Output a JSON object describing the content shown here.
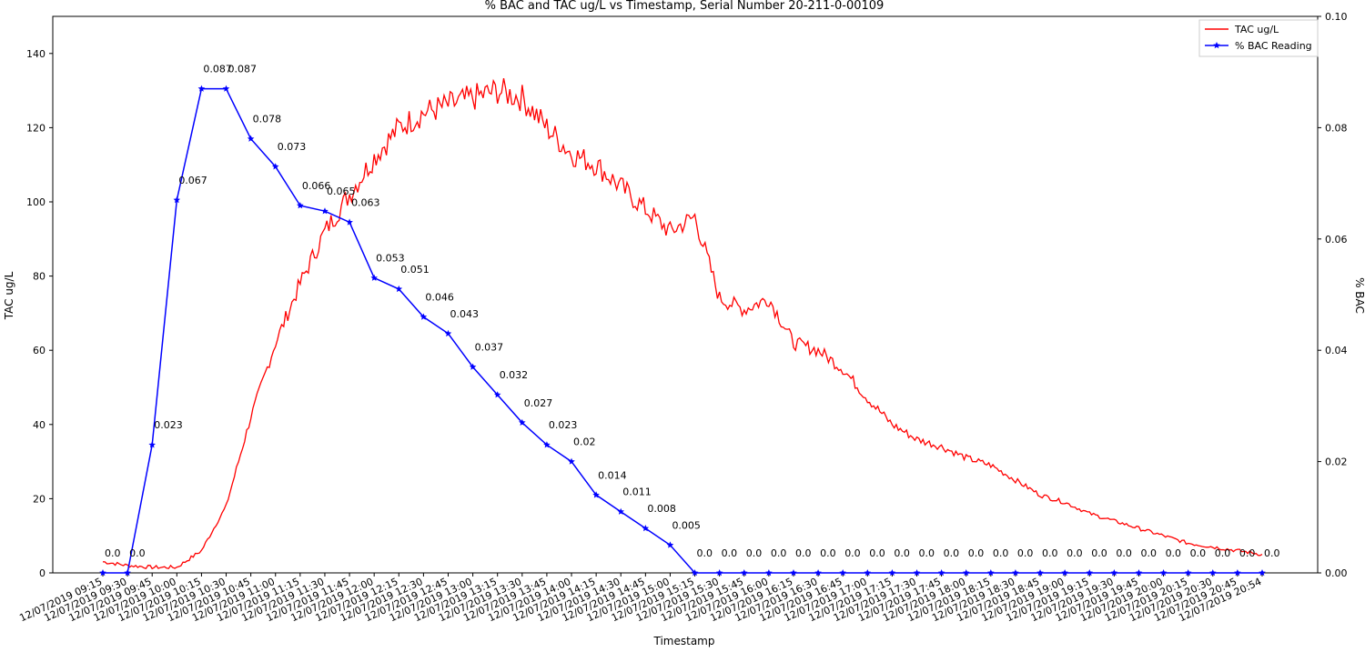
{
  "chart_data": {
    "type": "line",
    "title": "% BAC and TAC ug/L vs Timestamp, Serial Number 20-211-0-00109",
    "xlabel": "Timestamp",
    "ylabel_left": "TAC ug/L",
    "ylabel_right": "% BAC",
    "ylim_left": [
      0,
      150
    ],
    "ylim_right": [
      0,
      0.1
    ],
    "yticks_left": [
      "0",
      "20",
      "40",
      "60",
      "80",
      "100",
      "120",
      "140"
    ],
    "yticks_right": [
      "0.00",
      "0.02",
      "0.04",
      "0.06",
      "0.08",
      "0.10"
    ],
    "grid": false,
    "legend_position": "top-right",
    "colors": {
      "tac": "#ff0000",
      "bac": "#0000ff"
    },
    "categories": [
      "12/07/2019 09:15",
      "12/07/2019 09:30",
      "12/07/2019 09:45",
      "12/07/2019 10:00",
      "12/07/2019 10:15",
      "12/07/2019 10:30",
      "12/07/2019 10:45",
      "12/07/2019 11:00",
      "12/07/2019 11:15",
      "12/07/2019 11:30",
      "12/07/2019 11:45",
      "12/07/2019 12:00",
      "12/07/2019 12:15",
      "12/07/2019 12:30",
      "12/07/2019 12:45",
      "12/07/2019 13:00",
      "12/07/2019 13:15",
      "12/07/2019 13:30",
      "12/07/2019 13:45",
      "12/07/2019 14:00",
      "12/07/2019 14:15",
      "12/07/2019 14:30",
      "12/07/2019 14:45",
      "12/07/2019 15:00",
      "12/07/2019 15:15",
      "12/07/2019 15:30",
      "12/07/2019 15:45",
      "12/07/2019 16:00",
      "12/07/2019 16:15",
      "12/07/2019 16:30",
      "12/07/2019 16:45",
      "12/07/2019 17:00",
      "12/07/2019 17:15",
      "12/07/2019 17:30",
      "12/07/2019 17:45",
      "12/07/2019 18:00",
      "12/07/2019 18:15",
      "12/07/2019 18:30",
      "12/07/2019 18:45",
      "12/07/2019 19:00",
      "12/07/2019 19:15",
      "12/07/2019 19:30",
      "12/07/2019 19:45",
      "12/07/2019 20:00",
      "12/07/2019 20:15",
      "12/07/2019 20:30",
      "12/07/2019 20:45",
      "12/07/2019 20:54"
    ],
    "series": [
      {
        "name": "TAC ug/L",
        "axis": "left",
        "values": [
          3,
          2,
          1.5,
          1.5,
          6,
          18,
          42,
          62,
          78,
          92,
          102,
          112,
          120,
          124,
          126,
          128,
          130,
          128,
          120,
          113,
          110,
          104,
          98,
          92,
          96,
          74,
          71,
          74,
          62,
          60,
          55,
          47,
          40,
          36,
          34,
          31,
          29,
          25,
          21,
          19,
          16,
          14,
          12,
          10,
          8,
          7,
          6,
          5
        ]
      },
      {
        "name": "% BAC Reading",
        "axis": "right",
        "marker": "star",
        "values": [
          0.0,
          0.0,
          0.023,
          0.067,
          0.087,
          0.087,
          0.078,
          0.073,
          0.066,
          0.065,
          0.063,
          0.053,
          0.051,
          0.046,
          0.043,
          0.037,
          0.032,
          0.027,
          0.023,
          0.02,
          0.014,
          0.011,
          0.008,
          0.005,
          0.0,
          0.0,
          0.0,
          0.0,
          0.0,
          0.0,
          0.0,
          0.0,
          0.0,
          0.0,
          0.0,
          0.0,
          0.0,
          0.0,
          0.0,
          0.0,
          0.0,
          0.0,
          0.0,
          0.0,
          0.0,
          0.0,
          0.0,
          0.0
        ],
        "labels": [
          "0.0",
          "0.0",
          "0.023",
          "0.067",
          "0.087",
          "0.087",
          "0.078",
          "0.073",
          "0.066",
          "0.065",
          "0.063",
          "0.053",
          "0.051",
          "0.046",
          "0.043",
          "0.037",
          "0.032",
          "0.027",
          "0.023",
          "0.02",
          "0.014",
          "0.011",
          "0.008",
          "0.005",
          "0.0",
          "0.0",
          "0.0",
          "0.0",
          "0.0",
          "0.0",
          "0.0",
          "0.0",
          "0.0",
          "0.0",
          "0.0",
          "0.0",
          "0.0",
          "0.0",
          "0.0",
          "0.0",
          "0.0",
          "0.0",
          "0.0",
          "0.0",
          "0.0",
          "0.0",
          "0.0",
          "0.0"
        ]
      }
    ]
  }
}
